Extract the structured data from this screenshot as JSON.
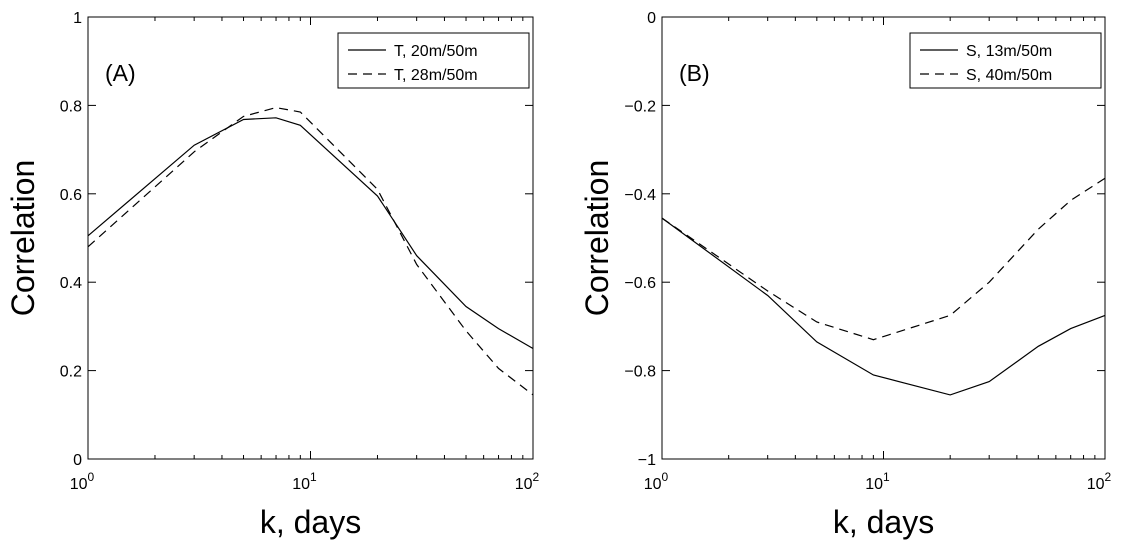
{
  "chart_data": [
    {
      "type": "line",
      "panel_label": "(A)",
      "xlabel": "k, days",
      "ylabel": "Correlation",
      "xscale": "log",
      "xlim": [
        1,
        100
      ],
      "ylim": [
        0,
        1
      ],
      "x_ticks": [
        1,
        10,
        100
      ],
      "x_tick_bases": [
        "10",
        "10",
        "10"
      ],
      "x_tick_exps": [
        "0",
        "1",
        "2"
      ],
      "y_ticks": [
        0,
        0.2,
        0.4,
        0.6,
        0.8,
        1
      ],
      "y_tick_labels": [
        "0",
        "0.2",
        "0.4",
        "0.6",
        "0.8",
        "1"
      ],
      "legend_position": "top-right",
      "series": [
        {
          "name": "T, 20m/50m",
          "style": "solid",
          "x": [
            1,
            3,
            5,
            7,
            9,
            20,
            30,
            50,
            70,
            100
          ],
          "y": [
            0.505,
            0.71,
            0.768,
            0.772,
            0.755,
            0.595,
            0.46,
            0.345,
            0.295,
            0.25
          ]
        },
        {
          "name": "T, 28m/50m",
          "style": "dashed",
          "x": [
            1,
            3,
            5,
            7,
            9,
            20,
            30,
            50,
            70,
            100
          ],
          "y": [
            0.48,
            0.695,
            0.775,
            0.795,
            0.785,
            0.61,
            0.44,
            0.29,
            0.205,
            0.145
          ]
        }
      ]
    },
    {
      "type": "line",
      "panel_label": "(B)",
      "xlabel": "k, days",
      "ylabel": "Correlation",
      "xscale": "log",
      "xlim": [
        1,
        100
      ],
      "ylim": [
        -1,
        0
      ],
      "x_ticks": [
        1,
        10,
        100
      ],
      "x_tick_bases": [
        "10",
        "10",
        "10"
      ],
      "x_tick_exps": [
        "0",
        "1",
        "2"
      ],
      "y_ticks": [
        -1,
        -0.8,
        -0.6,
        -0.4,
        -0.2,
        0
      ],
      "y_tick_labels": [
        "−1",
        "−0.8",
        "−0.6",
        "−0.4",
        "−0.2",
        "0"
      ],
      "legend_position": "top-right",
      "series": [
        {
          "name": "S, 13m/50m",
          "style": "solid",
          "x": [
            1,
            3,
            5,
            9,
            20,
            30,
            50,
            70,
            100
          ],
          "y": [
            -0.455,
            -0.63,
            -0.735,
            -0.81,
            -0.855,
            -0.825,
            -0.745,
            -0.705,
            -0.675
          ]
        },
        {
          "name": "S, 40m/50m",
          "style": "dashed",
          "x": [
            1,
            3,
            5,
            9,
            20,
            30,
            50,
            70,
            100
          ],
          "y": [
            -0.455,
            -0.62,
            -0.69,
            -0.73,
            -0.675,
            -0.6,
            -0.48,
            -0.415,
            -0.365
          ]
        }
      ]
    }
  ]
}
